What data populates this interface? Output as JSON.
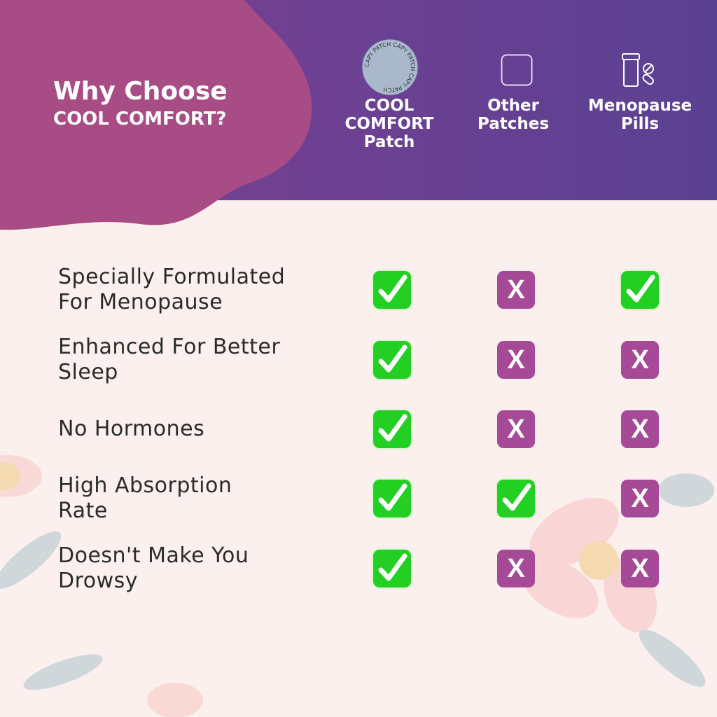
{
  "header": {
    "title_line1": "Why Choose",
    "title_line2": "COOL COMFORT?"
  },
  "columns": [
    {
      "label_lines": [
        "COOL",
        "COMFORT",
        "Patch"
      ],
      "icon": "patch-disc-icon",
      "badge_text": "CAPY PATCH CAPY PATCH CAPY PATCH"
    },
    {
      "label_lines": [
        "Other",
        "Patches"
      ],
      "icon": "square-patch-icon"
    },
    {
      "label_lines": [
        "Menopause",
        "Pills"
      ],
      "icon": "pill-bottle-icon"
    }
  ],
  "rows": [
    {
      "label_lines": [
        "Specially Formulated",
        "For Menopause"
      ],
      "values": [
        true,
        false,
        true
      ]
    },
    {
      "label_lines": [
        "Enhanced For Better",
        "Sleep"
      ],
      "values": [
        true,
        false,
        false
      ]
    },
    {
      "label_lines": [
        "No Hormones"
      ],
      "values": [
        true,
        false,
        false
      ]
    },
    {
      "label_lines": [
        "High Absorption",
        "Rate"
      ],
      "values": [
        true,
        true,
        false
      ]
    },
    {
      "label_lines": [
        "Doesn't Make You",
        "Drowsy"
      ],
      "values": [
        true,
        false,
        false
      ]
    }
  ],
  "no_symbol": "X",
  "colors": {
    "yes": "#24cf24",
    "no": "#a64a98",
    "header_start": "#7d3f90",
    "header_end": "#5b4193",
    "blob": "#a84c86"
  }
}
